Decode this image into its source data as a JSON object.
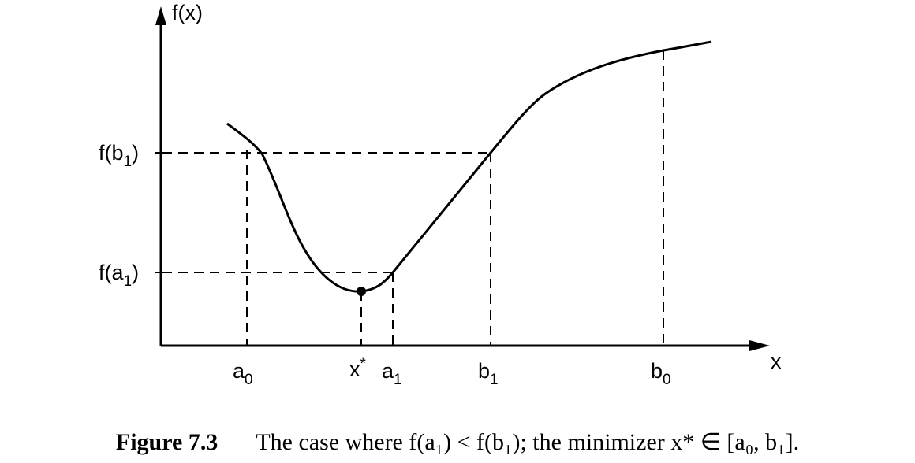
{
  "figure": {
    "axis_labels": {
      "y": "f(x)",
      "x": "x"
    },
    "tick_labels": {
      "a0": {
        "base": "a",
        "sub": "0"
      },
      "x_star": {
        "base": "x",
        "sup": "*"
      },
      "a1": {
        "base": "a",
        "sub": "1"
      },
      "b1": {
        "base": "b",
        "sub": "1"
      },
      "b0": {
        "base": "b",
        "sub": "0"
      },
      "f_a1": {
        "pre": "f(a",
        "sub": "1",
        "post": ")"
      },
      "f_b1": {
        "pre": "f(b",
        "sub": "1",
        "post": ")"
      }
    },
    "colors": {
      "ink": "#000000",
      "background": "#ffffff"
    }
  },
  "caption": {
    "number": "Figure 7.3",
    "text": "The case where f(a₁) < f(b₁); the minimizer x* ∈ [a₀, b₁]."
  }
}
